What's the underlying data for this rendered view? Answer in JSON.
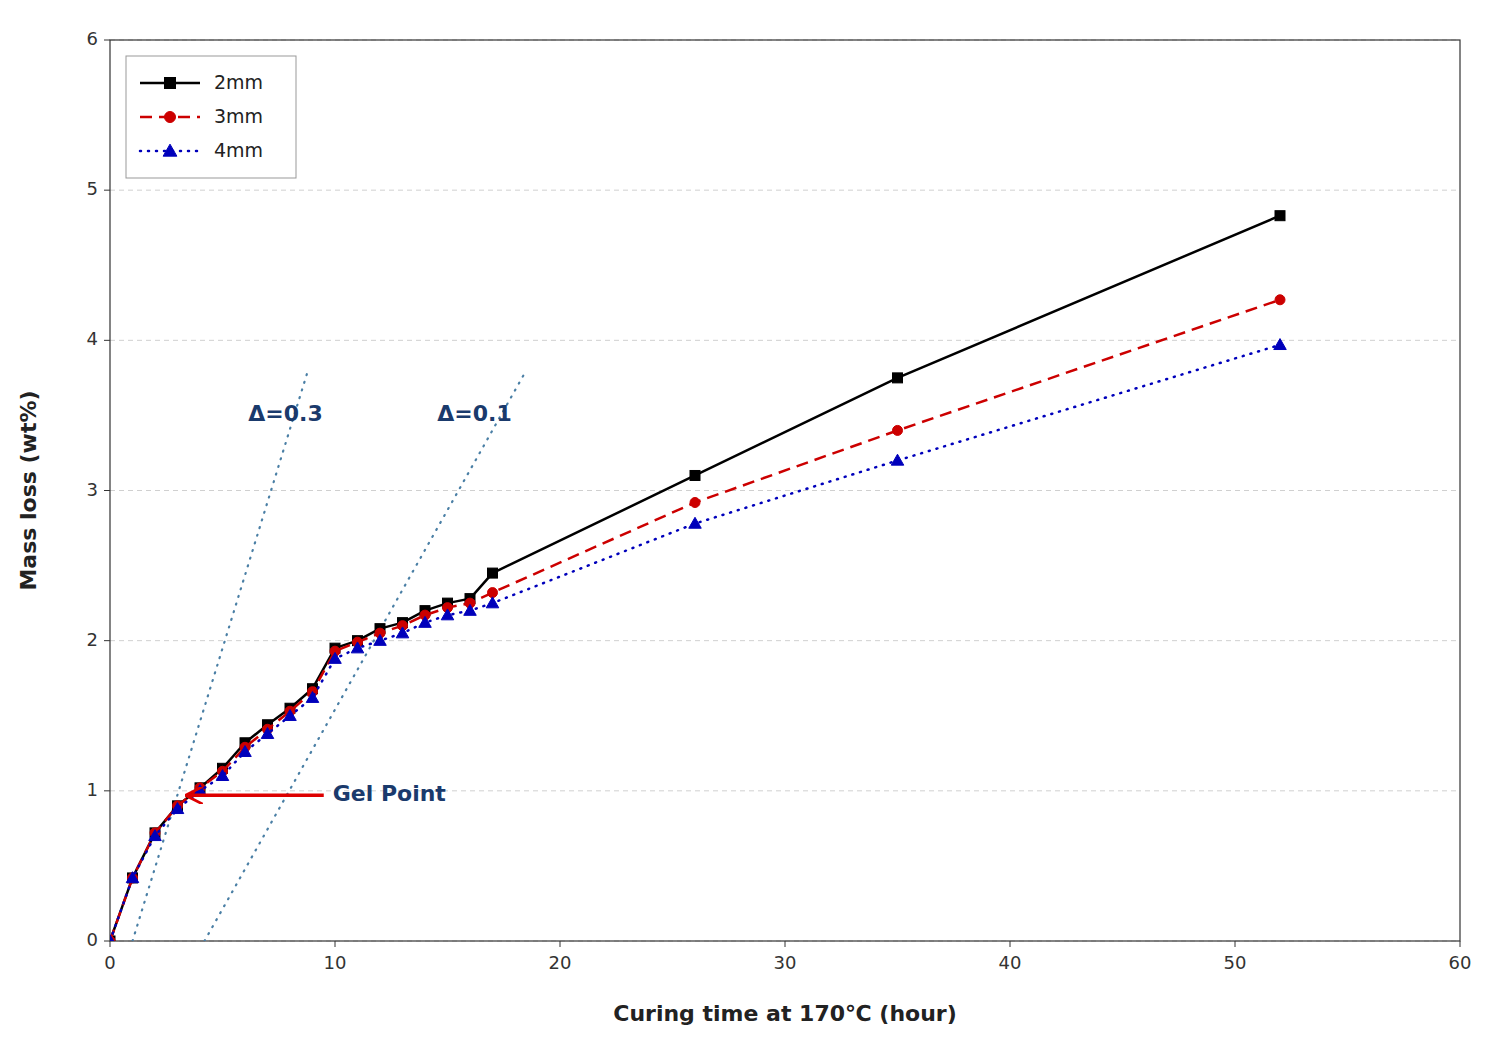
{
  "chart_data": {
    "type": "line",
    "x_label": "Curing time at 170℃ (hour)",
    "y_label": "Mass loss (wt%)",
    "x": [
      0,
      1,
      2,
      3,
      4,
      5,
      6,
      7,
      8,
      9,
      10,
      11,
      12,
      13,
      14,
      15,
      16,
      17,
      26,
      35,
      52
    ],
    "series": [
      {
        "name": "2mm",
        "color": "#000000",
        "marker": "square",
        "line_style": "solid",
        "values": [
          0,
          0.42,
          0.72,
          0.9,
          1.02,
          1.15,
          1.32,
          1.44,
          1.55,
          1.68,
          1.95,
          2.0,
          2.08,
          2.12,
          2.2,
          2.25,
          2.28,
          2.45,
          3.1,
          3.75,
          4.83
        ]
      },
      {
        "name": "3mm",
        "color": "#cc0000",
        "marker": "circle",
        "line_style": "dashed",
        "values": [
          0,
          0.42,
          0.72,
          0.9,
          1.02,
          1.13,
          1.29,
          1.41,
          1.53,
          1.66,
          1.93,
          1.99,
          2.05,
          2.1,
          2.17,
          2.22,
          2.25,
          2.32,
          2.92,
          3.4,
          4.27
        ]
      },
      {
        "name": "4mm",
        "color": "#0000bb",
        "marker": "triangle",
        "line_style": "dotted",
        "values": [
          0,
          0.42,
          0.7,
          0.88,
          1.0,
          1.1,
          1.26,
          1.38,
          1.5,
          1.62,
          1.88,
          1.95,
          2.0,
          2.05,
          2.12,
          2.17,
          2.2,
          2.25,
          2.78,
          3.2,
          3.97
        ]
      }
    ],
    "reference_lines": [
      {
        "x": [
          1.0,
          8.8
        ],
        "y": [
          0.0,
          3.8
        ],
        "color": "#4a7fa5",
        "line_style": "dotted"
      },
      {
        "x": [
          4.2,
          18.5
        ],
        "y": [
          0.0,
          3.8
        ],
        "color": "#4a7fa5",
        "line_style": "dotted"
      }
    ],
    "annotations": [
      {
        "text": "Δ=0.3",
        "x": 7.8,
        "y": 3.5,
        "color": "#1a3a6c"
      },
      {
        "text": "Δ=0.1",
        "x": 16.2,
        "y": 3.5,
        "color": "#1a3a6c"
      }
    ],
    "arrows": [
      {
        "x_tip": 3.5,
        "x_tail": 9.5,
        "y": 0.97,
        "color": "#dd0000",
        "text": "Gel Point",
        "text_x": 9.9,
        "text_y": 0.97,
        "text_color": "#1a3a6c"
      }
    ],
    "xlim": [
      0,
      60
    ],
    "ylim": [
      0,
      6
    ],
    "xticks": [
      0,
      10,
      20,
      30,
      40,
      50,
      60
    ],
    "yticks": [
      0,
      1,
      2,
      3,
      4,
      5,
      6
    ],
    "grid": "y",
    "legend": "upper-left"
  }
}
